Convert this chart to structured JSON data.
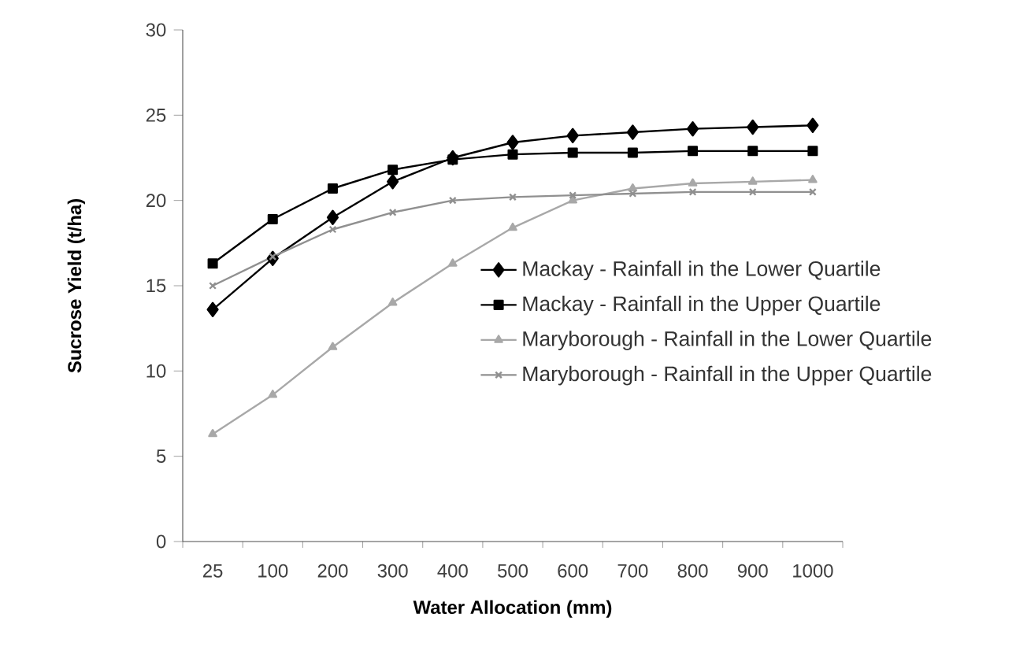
{
  "chart_data": {
    "type": "line",
    "xlabel": "Water Allocation (mm)",
    "ylabel": "Sucrose Yield (t/ha)",
    "categories": [
      "25",
      "100",
      "200",
      "300",
      "400",
      "500",
      "600",
      "700",
      "800",
      "900",
      "1000"
    ],
    "ylim": [
      0,
      30
    ],
    "yticks": [
      0,
      5,
      10,
      15,
      20,
      25,
      30
    ],
    "grid": false,
    "legend": "right",
    "series": [
      {
        "name": "Mackay - Rainfall in the Lower Quartile",
        "color": "#000000",
        "marker": "diamond",
        "values": [
          13.6,
          16.6,
          19.0,
          21.1,
          22.5,
          23.4,
          23.8,
          24.0,
          24.2,
          24.3,
          24.4
        ]
      },
      {
        "name": "Mackay - Rainfall in the Upper Quartile",
        "color": "#000000",
        "marker": "square",
        "values": [
          16.3,
          18.9,
          20.7,
          21.8,
          22.4,
          22.7,
          22.8,
          22.8,
          22.9,
          22.9,
          22.9
        ]
      },
      {
        "name": "Maryborough - Rainfall in the Lower Quartile",
        "color": "#a8a8a8",
        "marker": "triangle",
        "values": [
          6.3,
          8.6,
          11.4,
          14.0,
          16.3,
          18.4,
          20.0,
          20.7,
          21.0,
          21.1,
          21.2
        ]
      },
      {
        "name": "Maryborough - Rainfall in the Upper Quartile",
        "color": "#909090",
        "marker": "cross",
        "values": [
          15.0,
          16.7,
          18.3,
          19.3,
          20.0,
          20.2,
          20.3,
          20.4,
          20.5,
          20.5,
          20.5
        ]
      }
    ]
  }
}
